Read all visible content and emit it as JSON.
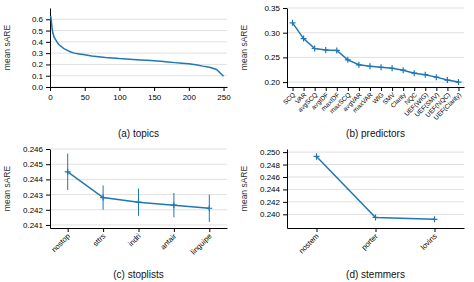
{
  "chart_data": [
    {
      "type": "line",
      "title": "(a) topics",
      "y_label": "mean sARE",
      "x": [
        1,
        2,
        3,
        4,
        5,
        6,
        7,
        8,
        9,
        10,
        12,
        14,
        16,
        18,
        20,
        25,
        30,
        35,
        40,
        50,
        60,
        70,
        80,
        90,
        100,
        110,
        120,
        130,
        140,
        150,
        160,
        170,
        180,
        190,
        200,
        210,
        220,
        230,
        240,
        250
      ],
      "values": [
        0.63,
        0.58,
        0.52,
        0.48,
        0.46,
        0.44,
        0.43,
        0.42,
        0.41,
        0.4,
        0.38,
        0.37,
        0.36,
        0.35,
        0.34,
        0.325,
        0.31,
        0.3,
        0.295,
        0.285,
        0.275,
        0.268,
        0.262,
        0.258,
        0.252,
        0.248,
        0.244,
        0.24,
        0.236,
        0.232,
        0.228,
        0.222,
        0.216,
        0.21,
        0.205,
        0.198,
        0.185,
        0.175,
        0.155,
        0.095
      ],
      "xlim": [
        0,
        255
      ],
      "xticks": [
        0,
        50,
        100,
        150,
        200,
        250
      ],
      "ylim": [
        0,
        0.7
      ],
      "yticks": [
        {
          "value": 0,
          "label": "0.0"
        },
        0.1,
        0.2,
        0.3,
        0.4,
        0.5,
        0.6
      ],
      "grid": true
    },
    {
      "type": "line",
      "title": "(b) predictors",
      "y_label": "mean sARE",
      "categories": [
        "SCQ",
        "VAR",
        "avgSCQ",
        "avgIDF",
        "maxIDF",
        "maxSCQ",
        "avgVAR",
        "maxVAR",
        "WIG",
        "SMV",
        "Clarity",
        "NQC",
        "UEF(WIG)",
        "UEF(SMV)",
        "UEF(NQC)",
        "UEF(Clarity)"
      ],
      "values": [
        0.32,
        0.288,
        0.268,
        0.265,
        0.264,
        0.245,
        0.235,
        0.232,
        0.23,
        0.228,
        0.224,
        0.218,
        0.215,
        0.21,
        0.204,
        0.2
      ],
      "marker": "plus",
      "ylim": [
        0.19,
        0.35
      ],
      "yticks": [
        {
          "value": 0.2,
          "label": "0.20"
        },
        0.25,
        {
          "value": 0.3,
          "label": "0.30"
        },
        0.35
      ],
      "grid": true
    },
    {
      "type": "line",
      "title": "(c) stoplists",
      "y_label": "mean sARE",
      "categories": [
        "nostop",
        "sttrs",
        "indri",
        "antair",
        "linguipe"
      ],
      "values": [
        0.2445,
        0.2428,
        0.2425,
        0.2423,
        0.2421
      ],
      "errors": [
        0.0012,
        0.0008,
        0.0009,
        0.0008,
        0.0009
      ],
      "marker": "plus",
      "ylim": [
        0.2408,
        0.246
      ],
      "yticks": [
        0.241,
        0.242,
        0.243,
        0.244,
        0.245,
        0.246
      ],
      "grid": true
    },
    {
      "type": "line",
      "title": "(d) stemmers",
      "y_label": "mean sARE",
      "categories": [
        "nostem",
        "porter",
        "lovins"
      ],
      "values": [
        0.2493,
        0.2395,
        0.2392
      ],
      "errors": [
        0.0005,
        0.0004,
        0.0004
      ],
      "marker": "plus",
      "ylim": [
        0.2378,
        0.2505
      ],
      "yticks": [
        {
          "value": 0.24,
          "label": "0.240"
        },
        0.242,
        0.244,
        0.246,
        0.248,
        {
          "value": 0.25,
          "label": "0.250"
        }
      ],
      "grid": true
    }
  ]
}
